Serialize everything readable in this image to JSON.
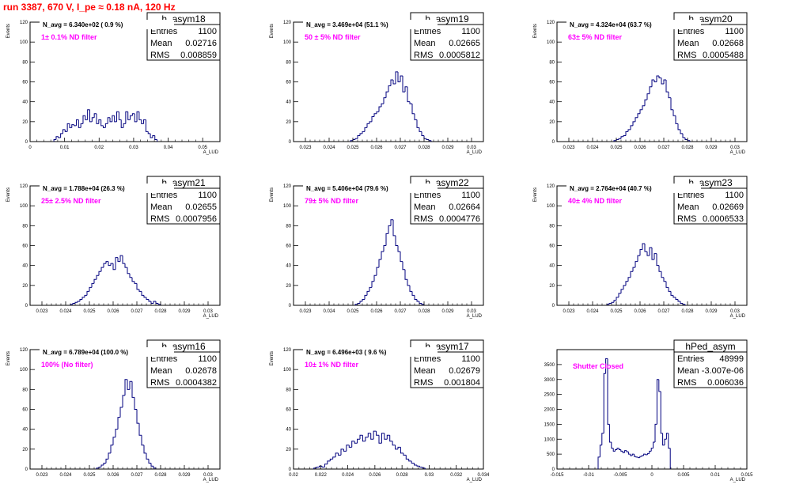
{
  "header": {
    "title": "run 3387,   670 V, I_pe ≈ 0.18 nA, 120 Hz"
  },
  "colors": {
    "histogram": "#00007f",
    "title": "#ff0000",
    "annotation": "#ff00ff"
  },
  "chart_data": [
    {
      "type": "bar",
      "name": "h_asym18",
      "stats": {
        "entries": "1100",
        "mean": "0.02716",
        "rms": "0.008859"
      },
      "n_avg": "N_avg = 6.340e+02 ( 0.9 %)",
      "filter": "1± 0.1% ND filter",
      "xlabel": "A_LUD",
      "ylabel": "Events",
      "xlim": [
        0,
        0.055
      ],
      "ylim": [
        0,
        120
      ],
      "xticks": [
        "0",
        "0.01",
        "0.02",
        "0.03",
        "0.04",
        "0.05"
      ],
      "xtick_values": [
        0,
        0.01,
        0.02,
        0.03,
        0.04,
        0.05
      ],
      "yticks": [
        "0",
        "20",
        "40",
        "60",
        "80",
        "100",
        "120"
      ],
      "ytick_values": [
        0,
        20,
        40,
        60,
        80,
        100,
        120
      ],
      "bin_start": 0.0069,
      "bin_width": 0.00065,
      "values": [
        2,
        5,
        4,
        8,
        12,
        10,
        18,
        14,
        17,
        16,
        22,
        14,
        18,
        26,
        22,
        32,
        20,
        24,
        28,
        18,
        22,
        16,
        14,
        18,
        24,
        20,
        26,
        20,
        30,
        22,
        14,
        18,
        30,
        22,
        26,
        28,
        20,
        30,
        22,
        18,
        22,
        10,
        8,
        4,
        6,
        2
      ]
    },
    {
      "type": "bar",
      "name": "h_asym19",
      "stats": {
        "entries": "1100",
        "mean": "0.02665",
        "rms": "0.0005812"
      },
      "n_avg": "N_avg = 3.469e+04 (51.1 %)",
      "filter": "50 ± 5% ND filter",
      "xlabel": "A_LUD",
      "ylabel": "Events",
      "xlim": [
        0.0225,
        0.0305
      ],
      "ylim": [
        0,
        120
      ],
      "xticks": [
        "0.023",
        "0.024",
        "0.025",
        "0.026",
        "0.027",
        "0.028",
        "0.029",
        "0.03"
      ],
      "xtick_values": [
        0.023,
        0.024,
        0.025,
        0.026,
        0.027,
        0.028,
        0.029,
        0.03
      ],
      "yticks": [
        "0",
        "20",
        "40",
        "60",
        "80",
        "100",
        "120"
      ],
      "ytick_values": [
        0,
        20,
        40,
        60,
        80,
        100,
        120
      ],
      "bin_start": 0.0249,
      "bin_width": 0.0001,
      "values": [
        1,
        2,
        3,
        6,
        8,
        10,
        14,
        18,
        20,
        25,
        28,
        30,
        35,
        38,
        44,
        50,
        56,
        62,
        58,
        70,
        60,
        66,
        50,
        55,
        40,
        38,
        28,
        22,
        14,
        10,
        6,
        3,
        2,
        1
      ]
    },
    {
      "type": "bar",
      "name": "h_asym20",
      "stats": {
        "entries": "1100",
        "mean": "0.02668",
        "rms": "0.0005488"
      },
      "n_avg": "N_avg = 4.324e+04 (63.7 %)",
      "filter": "63± 5% ND filter",
      "xlabel": "A_LUD",
      "ylabel": "Events",
      "xlim": [
        0.0225,
        0.0305
      ],
      "ylim": [
        0,
        120
      ],
      "xticks": [
        "0.023",
        "0.024",
        "0.025",
        "0.026",
        "0.027",
        "0.028",
        "0.029",
        "0.03"
      ],
      "xtick_values": [
        0.023,
        0.024,
        0.025,
        0.026,
        0.027,
        0.028,
        0.029,
        0.03
      ],
      "yticks": [
        "0",
        "20",
        "40",
        "60",
        "80",
        "100",
        "120"
      ],
      "ytick_values": [
        0,
        20,
        40,
        60,
        80,
        100,
        120
      ],
      "bin_start": 0.0249,
      "bin_width": 0.0001,
      "values": [
        1,
        2,
        3,
        5,
        6,
        10,
        12,
        16,
        20,
        24,
        28,
        32,
        36,
        42,
        48,
        55,
        62,
        60,
        66,
        64,
        58,
        62,
        50,
        44,
        32,
        26,
        18,
        12,
        8,
        4,
        2,
        1
      ]
    },
    {
      "type": "bar",
      "name": "h_asym21",
      "stats": {
        "entries": "1100",
        "mean": "0.02655",
        "rms": "0.0007956"
      },
      "n_avg": "N_avg = 1.788e+04 (26.3 %)",
      "filter": "25± 2.5% ND filter",
      "xlabel": "A_LUD",
      "ylabel": "Events",
      "xlim": [
        0.0225,
        0.0305
      ],
      "ylim": [
        0,
        120
      ],
      "xticks": [
        "0.023",
        "0.024",
        "0.025",
        "0.026",
        "0.027",
        "0.028",
        "0.029",
        "0.03"
      ],
      "xtick_values": [
        0.023,
        0.024,
        0.025,
        0.026,
        0.027,
        0.028,
        0.029,
        0.03
      ],
      "yticks": [
        "0",
        "20",
        "40",
        "60",
        "80",
        "100",
        "120"
      ],
      "ytick_values": [
        0,
        20,
        40,
        60,
        80,
        100,
        120
      ],
      "bin_start": 0.0242,
      "bin_width": 0.0001,
      "values": [
        1,
        2,
        3,
        4,
        6,
        8,
        10,
        14,
        18,
        22,
        26,
        30,
        34,
        38,
        42,
        44,
        40,
        42,
        36,
        48,
        44,
        50,
        42,
        38,
        32,
        28,
        24,
        22,
        16,
        14,
        10,
        8,
        6,
        4,
        2,
        4,
        2,
        1
      ]
    },
    {
      "type": "bar",
      "name": "h_asym22",
      "stats": {
        "entries": "1100",
        "mean": "0.02664",
        "rms": "0.0004776"
      },
      "n_avg": "N_avg = 5.406e+04 (79.6 %)",
      "filter": "79± 5% ND filter",
      "xlabel": "A_LUD",
      "ylabel": "Events",
      "xlim": [
        0.0225,
        0.0305
      ],
      "ylim": [
        0,
        120
      ],
      "xticks": [
        "0.023",
        "0.024",
        "0.025",
        "0.026",
        "0.027",
        "0.028",
        "0.029",
        "0.03"
      ],
      "xtick_values": [
        0.023,
        0.024,
        0.025,
        0.026,
        0.027,
        0.028,
        0.029,
        0.03
      ],
      "yticks": [
        "0",
        "20",
        "40",
        "60",
        "80",
        "100",
        "120"
      ],
      "ytick_values": [
        0,
        20,
        40,
        60,
        80,
        100,
        120
      ],
      "bin_start": 0.0251,
      "bin_width": 0.0001,
      "values": [
        1,
        2,
        4,
        6,
        10,
        14,
        18,
        24,
        30,
        38,
        46,
        54,
        60,
        72,
        80,
        86,
        70,
        60,
        54,
        44,
        36,
        26,
        20,
        14,
        10,
        6,
        4,
        2,
        1
      ]
    },
    {
      "type": "bar",
      "name": "h_asym23",
      "stats": {
        "entries": "1100",
        "mean": "0.02669",
        "rms": "0.0006533"
      },
      "n_avg": "N_avg = 2.764e+04 (40.7 %)",
      "filter": "40± 4% ND filter",
      "xlabel": "A_LUD",
      "ylabel": "Events",
      "xlim": [
        0.0225,
        0.0305
      ],
      "ylim": [
        0,
        120
      ],
      "xticks": [
        "0.023",
        "0.024",
        "0.025",
        "0.026",
        "0.027",
        "0.028",
        "0.029",
        "0.03"
      ],
      "xtick_values": [
        0.023,
        0.024,
        0.025,
        0.026,
        0.027,
        0.028,
        0.029,
        0.03
      ],
      "yticks": [
        "0",
        "20",
        "40",
        "60",
        "80",
        "100",
        "120"
      ],
      "ytick_values": [
        0,
        20,
        40,
        60,
        80,
        100,
        120
      ],
      "bin_start": 0.0246,
      "bin_width": 0.0001,
      "values": [
        1,
        2,
        3,
        5,
        8,
        12,
        16,
        20,
        24,
        28,
        34,
        38,
        44,
        50,
        56,
        62,
        54,
        50,
        58,
        46,
        52,
        40,
        34,
        28,
        24,
        18,
        14,
        10,
        8,
        6,
        4,
        2,
        1
      ]
    },
    {
      "type": "bar",
      "name": "h_asym16",
      "stats": {
        "entries": "1100",
        "mean": "0.02678",
        "rms": "0.0004382"
      },
      "n_avg": "N_avg = 6.789e+04 (100.0 %)",
      "filter": "100% (No filter)",
      "xlabel": "A_LUD",
      "ylabel": "Events",
      "xlim": [
        0.0225,
        0.0305
      ],
      "ylim": [
        0,
        120
      ],
      "xticks": [
        "0.023",
        "0.024",
        "0.025",
        "0.026",
        "0.027",
        "0.028",
        "0.029",
        "0.03"
      ],
      "xtick_values": [
        0.023,
        0.024,
        0.025,
        0.026,
        0.027,
        0.028,
        0.029,
        0.03
      ],
      "yticks": [
        "0",
        "20",
        "40",
        "60",
        "80",
        "100",
        "120"
      ],
      "ytick_values": [
        0,
        20,
        40,
        60,
        80,
        100,
        120
      ],
      "bin_start": 0.0253,
      "bin_width": 0.0001,
      "values": [
        1,
        2,
        4,
        6,
        10,
        16,
        24,
        32,
        40,
        52,
        62,
        74,
        90,
        80,
        88,
        72,
        60,
        46,
        34,
        24,
        16,
        10,
        6,
        3,
        1
      ]
    },
    {
      "type": "bar",
      "name": "h_asym17",
      "stats": {
        "entries": "1100",
        "mean": "0.02679",
        "rms": "0.001804"
      },
      "n_avg": "N_avg = 6.496e+03 ( 9.6 %)",
      "filter": "10± 1% ND filter",
      "xlabel": "A_LUD",
      "ylabel": "Events",
      "xlim": [
        0.02,
        0.034
      ],
      "ylim": [
        0,
        120
      ],
      "xticks": [
        "0.02",
        "0.022",
        "0.024",
        "0.026",
        "0.028",
        "0.03",
        "0.032",
        "0.034"
      ],
      "xtick_values": [
        0.02,
        0.022,
        0.024,
        0.026,
        0.028,
        0.03,
        0.032,
        0.034
      ],
      "yticks": [
        "0",
        "20",
        "40",
        "60",
        "80",
        "100",
        "120"
      ],
      "ytick_values": [
        0,
        20,
        40,
        60,
        80,
        100,
        120
      ],
      "bin_start": 0.0215,
      "bin_width": 0.0002,
      "values": [
        1,
        2,
        3,
        2,
        5,
        8,
        10,
        12,
        16,
        14,
        20,
        18,
        24,
        22,
        28,
        26,
        30,
        34,
        28,
        32,
        36,
        30,
        38,
        34,
        26,
        36,
        30,
        34,
        28,
        24,
        20,
        22,
        16,
        14,
        10,
        8,
        6,
        4,
        3,
        2,
        1
      ]
    },
    {
      "type": "bar",
      "name": "hPed_asym",
      "stats": {
        "entries": "48999",
        "mean": "-3.007e-06",
        "rms": "0.006036"
      },
      "n_avg": "",
      "filter": "Shutter Closed",
      "xlabel": "A_LUD",
      "ylabel": "",
      "xlim": [
        -0.015,
        0.015
      ],
      "ylim": [
        0,
        4000
      ],
      "xticks": [
        "-0.015",
        "-0.01",
        "-0.005",
        "0",
        "0.005",
        "0.01",
        "0.015"
      ],
      "xtick_values": [
        -0.015,
        -0.01,
        -0.005,
        0,
        0.005,
        0.01,
        0.015
      ],
      "yticks": [
        "0",
        "500",
        "1000",
        "1500",
        "2000",
        "2500",
        "3000",
        "3500"
      ],
      "ytick_values": [
        0,
        500,
        1000,
        1500,
        2000,
        2500,
        3000,
        3500
      ],
      "bin_start": -0.0085,
      "bin_width": 0.0003,
      "values": [
        400,
        800,
        1200,
        3200,
        3700,
        1500,
        900,
        700,
        600,
        650,
        700,
        650,
        600,
        550,
        620,
        580,
        500,
        450,
        500,
        420,
        400,
        380,
        420,
        450,
        500,
        480,
        520,
        600,
        700,
        900,
        1500,
        3000,
        2600,
        1200,
        800,
        1000,
        1200,
        700
      ]
    }
  ]
}
